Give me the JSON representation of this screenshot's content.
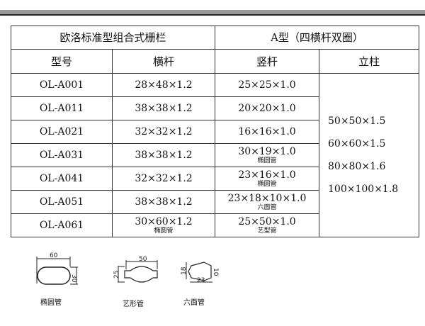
{
  "header": {
    "title": "欧洛标准型组合式栅栏",
    "subtitle": "A型（四横杆双圈）"
  },
  "columns": [
    "型号",
    "横杆",
    "竖杆",
    "立柱"
  ],
  "rows": [
    {
      "model": "OL-A001",
      "rail": "28×48×1.2",
      "rail_note": "",
      "picket": "25×25×1.0",
      "picket_note": ""
    },
    {
      "model": "OL-A011",
      "rail": "38×38×1.2",
      "rail_note": "",
      "picket": "20×20×1.0",
      "picket_note": ""
    },
    {
      "model": "OL-A021",
      "rail": "32×32×1.2",
      "rail_note": "",
      "picket": "16×16×1.0",
      "picket_note": ""
    },
    {
      "model": "OL-A031",
      "rail": "38×38×1.2",
      "rail_note": "",
      "picket": "30×19×1.0",
      "picket_note": "椭圆管"
    },
    {
      "model": "OL-A041",
      "rail": "32×32×1.2",
      "rail_note": "",
      "picket": "23×16×1.0",
      "picket_note": "椭圆管"
    },
    {
      "model": "OL-A051",
      "rail": "38×38×1.2",
      "rail_note": "",
      "picket": "23×18×10×1.0",
      "picket_note": "六面管"
    },
    {
      "model": "OL-A061",
      "rail": "30×60×1.2",
      "rail_note": "椭圆管",
      "picket": "25×50×1.0",
      "picket_note": "艺型管"
    }
  ],
  "posts": [
    "50×50×1.5",
    "60×60×1.5",
    "80×80×1.6",
    "100×100×1.8"
  ],
  "diagrams": [
    {
      "label": "椭圆管",
      "dims": [
        "60",
        "30"
      ]
    },
    {
      "label": "艺形管",
      "dims": [
        "50",
        "25"
      ]
    },
    {
      "label": "六面管",
      "dims": [
        "23",
        "18",
        "10"
      ]
    }
  ]
}
